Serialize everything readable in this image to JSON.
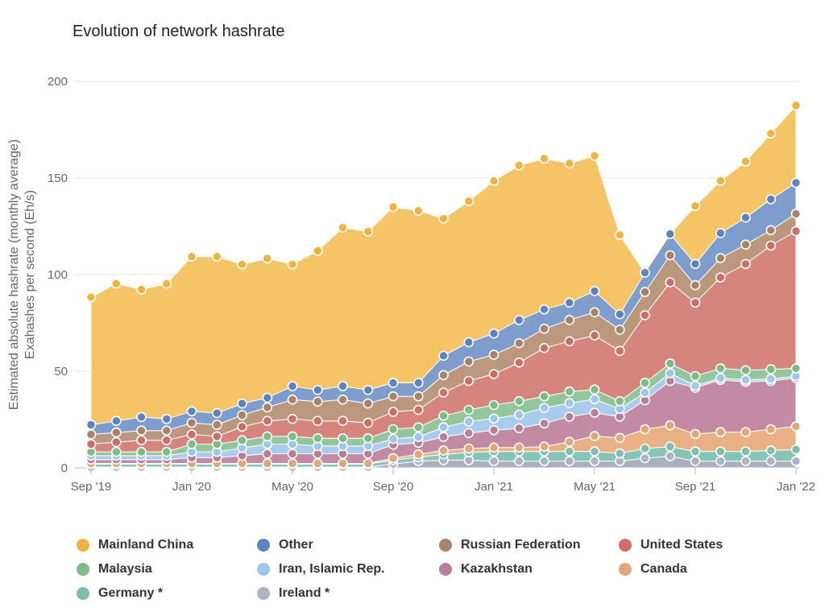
{
  "chart_data": {
    "type": "area",
    "stacked": true,
    "title": "Evolution of network hashrate",
    "ylabel_line1": "Estimated absolute hashrate (monthly average)",
    "ylabel_line2": "Exahashes per second (Eh/s)",
    "ylim": [
      0,
      200
    ],
    "yticks": [
      0,
      50,
      100,
      150,
      200
    ],
    "grid": true,
    "legend_position": "bottom",
    "x": [
      "Sep '19",
      "Oct '19",
      "Nov '19",
      "Dec '19",
      "Jan '20",
      "Feb '20",
      "Mar '20",
      "Apr '20",
      "May '20",
      "Jun '20",
      "Jul '20",
      "Aug '20",
      "Sep '20",
      "Oct '20",
      "Nov '20",
      "Dec '20",
      "Jan '21",
      "Feb '21",
      "Mar '21",
      "Apr '21",
      "May '21",
      "Jun '21",
      "Jul '21",
      "Aug '21",
      "Sep '21",
      "Oct '21",
      "Nov '21",
      "Dec '21",
      "Jan '22"
    ],
    "xtick_labels": [
      "Sep '19",
      "Jan '20",
      "May '20",
      "Sep '20",
      "Jan '21",
      "May '21",
      "Sep '21",
      "Jan '22"
    ],
    "xtick_index": [
      0,
      4,
      8,
      12,
      16,
      20,
      24,
      28
    ],
    "series": [
      {
        "name": "Ireland *",
        "color": "#a9b0bf",
        "values": [
          0.4,
          0.4,
          0.4,
          0.4,
          0.4,
          0.4,
          0.4,
          0.4,
          0.4,
          0.4,
          0.4,
          0.4,
          2,
          3.5,
          4,
          4,
          3.5,
          3.5,
          3.5,
          3.5,
          3.5,
          3.5,
          5,
          6,
          3.5,
          3.5,
          3.5,
          3.5,
          3.5
        ]
      },
      {
        "name": "Germany *",
        "color": "#86c5b5",
        "values": [
          1.5,
          1.5,
          1.5,
          1.5,
          1.5,
          1.5,
          1.5,
          1.5,
          1.5,
          1.5,
          1.5,
          1.5,
          2,
          2,
          3,
          4,
          5,
          5,
          5,
          5,
          5,
          4,
          5,
          5,
          5,
          5,
          5,
          5.5,
          6
        ]
      },
      {
        "name": "Canada",
        "color": "#e9b184",
        "values": [
          0.4,
          0.4,
          0.4,
          0.4,
          0.4,
          0.4,
          0.4,
          0.4,
          0.4,
          0.4,
          0.4,
          0.4,
          1,
          1.5,
          2,
          2,
          2,
          2,
          2.5,
          5,
          8,
          8,
          10,
          11,
          9,
          10,
          10,
          11,
          12
        ]
      },
      {
        "name": "Kazakhstan",
        "color": "#c38aa3",
        "values": [
          2,
          2,
          2,
          2,
          3,
          3,
          4,
          5,
          5,
          5,
          5,
          5,
          7,
          6,
          7,
          8,
          9,
          10,
          12,
          13,
          12,
          11,
          15,
          23,
          24,
          27,
          26,
          25,
          25
        ]
      },
      {
        "name": "Iran, Islamic Rep.",
        "color": "#a8cbee",
        "values": [
          2,
          2,
          2,
          2,
          3,
          3,
          4,
          5,
          5,
          4,
          4,
          4,
          3,
          3,
          5,
          6,
          6,
          7,
          8,
          7,
          7,
          4,
          4,
          4,
          1,
          1,
          1,
          1,
          1
        ]
      },
      {
        "name": "Malaysia",
        "color": "#93c79b",
        "values": [
          2,
          2,
          2,
          2,
          4,
          4,
          4,
          4,
          4,
          4,
          4,
          4,
          5,
          5,
          6,
          6,
          7,
          7,
          6,
          6,
          5,
          4,
          5,
          5,
          5,
          5,
          5,
          5,
          4
        ]
      },
      {
        "name": "United States",
        "color": "#d5857e",
        "values": [
          4,
          5,
          6,
          6,
          5,
          4,
          7,
          8,
          9,
          9,
          9,
          8,
          9,
          9,
          12,
          15,
          16,
          20,
          25,
          26,
          28,
          26,
          35,
          42,
          38,
          47,
          55,
          64,
          71
        ]
      },
      {
        "name": "Russian Federation",
        "color": "#bb977e",
        "values": [
          5,
          5,
          5,
          5,
          6,
          6,
          6,
          7,
          10,
          10,
          11,
          10,
          8,
          7,
          9,
          10,
          10,
          10,
          10,
          11,
          12,
          11,
          12,
          14,
          9,
          10,
          10,
          8,
          9
        ]
      },
      {
        "name": "Other",
        "color": "#7e9dcc",
        "values": [
          5,
          6,
          7,
          6,
          6,
          6,
          6,
          5,
          7,
          6,
          7,
          7,
          7,
          7,
          10,
          10,
          11,
          12,
          10,
          9,
          11,
          8,
          10,
          11,
          11,
          13,
          14,
          16,
          16
        ]
      },
      {
        "name": "Mainland China",
        "color": "#f5c467",
        "values": [
          66,
          71,
          66,
          70,
          80,
          81,
          72,
          72,
          63,
          72,
          82,
          82,
          91,
          89,
          71,
          73,
          79,
          80,
          78,
          72,
          70,
          41,
          0,
          0,
          30,
          27,
          29,
          34,
          40
        ]
      }
    ]
  },
  "legend_order": [
    "Mainland China",
    "Other",
    "Russian Federation",
    "United States",
    "Malaysia",
    "Iran, Islamic Rep.",
    "Kazakhstan",
    "Canada",
    "Germany *",
    "Ireland *"
  ],
  "legend_colors": {
    "Mainland China": "#f0b33f",
    "Other": "#5f83c0",
    "Russian Federation": "#a8826a",
    "United States": "#cd6e66",
    "Malaysia": "#7dbb87",
    "Iran, Islamic Rep.": "#9ec6ec",
    "Kazakhstan": "#b6809a",
    "Canada": "#e0a878",
    "Germany *": "#7fbdb0",
    "Ireland *": "#adb3c2"
  }
}
